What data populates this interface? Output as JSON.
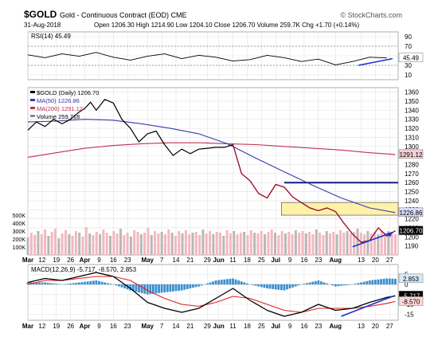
{
  "header": {
    "symbol": "$GOLD",
    "description": "Gold - Continuous Contract (EOD) CME",
    "source": "© StockCharts.com",
    "date": "31-Aug-2018",
    "ohlc_text": "Open 1206.30  High 1214.90  Low 1204.10  Close 1206.70  Volume 259.7K  Chg +1.70 (+0.14%)"
  },
  "colors": {
    "price": "#000000",
    "downtrend": "#b01030",
    "ma50": "#3a3ab0",
    "ma200": "#c03050",
    "volume_up": "#f4b8c0",
    "volume_down": "#b8b8b8",
    "macd_line": "#000000",
    "signal_line": "#e02020",
    "histogram": "#3a8fd0",
    "annotation_arrow": "#2030d0",
    "resistance": "#1a1a80",
    "highlight_box": "#fff1a8",
    "grid": "#e2e2e2"
  },
  "chart_data": [
    {
      "type": "line",
      "title": "RSI(14) 45.49",
      "legend": [
        "RSI(14) 45.49"
      ],
      "ylim": [
        0,
        100
      ],
      "y_ticks": [
        10,
        30,
        50,
        70,
        90
      ],
      "reference_lines": [
        30,
        70
      ],
      "last_value_label": "45.49",
      "series": [
        {
          "name": "RSI(14)",
          "x": [
            0,
            6,
            12,
            18,
            24,
            30,
            36,
            42,
            48,
            54,
            60,
            66,
            72,
            78,
            84,
            90,
            96,
            102,
            108,
            114,
            120,
            126
          ],
          "values": [
            52,
            46,
            54,
            49,
            57,
            47,
            41,
            49,
            54,
            44,
            51,
            47,
            39,
            42,
            51,
            46,
            38,
            43,
            31,
            38,
            47,
            45.49
          ]
        }
      ]
    },
    {
      "type": "line",
      "legend": [
        "$GOLD (Daily) 1206.70",
        "MA(50) 1226.86",
        "MA(200) 1291.12",
        "Volume 259,718"
      ],
      "ylim": [
        1180,
        1365
      ],
      "y_ticks": [
        1190,
        1200,
        1210,
        1220,
        1230,
        1240,
        1250,
        1260,
        1270,
        1280,
        1290,
        1300,
        1310,
        1320,
        1330,
        1340,
        1350,
        1360
      ],
      "x_tick_labels": [
        "Mar",
        "12",
        "19",
        "26",
        "Apr",
        "9",
        "16",
        "23",
        "May",
        "7",
        "14",
        "21",
        "29",
        "Jun",
        "11",
        "18",
        "25",
        "Jul",
        "9",
        "16",
        "23",
        "Aug",
        "13",
        "20",
        "27"
      ],
      "x_tick_positions": [
        0,
        5,
        10,
        15,
        20,
        25,
        30,
        35,
        42,
        47,
        52,
        57,
        63,
        67,
        72,
        77,
        82,
        87,
        92,
        97,
        102,
        108,
        117,
        122,
        127
      ],
      "value_labels": [
        "1291.12",
        "1226.86",
        "1206.70"
      ],
      "series": [
        {
          "name": "$GOLD (Daily) 1206.70",
          "x": [
            0,
            3,
            6,
            9,
            12,
            15,
            18,
            20,
            22,
            24,
            27,
            30,
            33,
            36,
            39,
            42,
            45,
            48,
            51,
            54,
            57,
            60,
            63,
            66,
            69,
            72,
            75,
            78,
            81,
            84,
            87,
            90,
            93,
            96,
            99,
            102,
            105,
            108,
            111,
            114,
            117,
            120,
            123,
            126,
            129
          ],
          "values": [
            1318,
            1327,
            1322,
            1330,
            1325,
            1330,
            1338,
            1342,
            1349,
            1340,
            1352,
            1348,
            1330,
            1320,
            1305,
            1314,
            1317,
            1302,
            1290,
            1297,
            1292,
            1297,
            1298,
            1299,
            1299,
            1302,
            1270,
            1262,
            1248,
            1243,
            1258,
            1255,
            1244,
            1238,
            1232,
            1229,
            1232,
            1228,
            1215,
            1203,
            1194,
            1196,
            1210,
            1201,
            1206.7
          ]
        },
        {
          "name": "MA(50) 1226.86",
          "x": [
            0,
            10,
            20,
            30,
            40,
            50,
            60,
            70,
            80,
            90,
            100,
            110,
            120,
            129
          ],
          "values": [
            1327,
            1328,
            1330,
            1329,
            1325,
            1320,
            1314,
            1303,
            1287,
            1272,
            1257,
            1243,
            1232,
            1226.86
          ]
        },
        {
          "name": "MA(200) 1291.12",
          "x": [
            0,
            10,
            20,
            30,
            40,
            50,
            60,
            70,
            80,
            90,
            100,
            110,
            120,
            129
          ],
          "values": [
            1288,
            1293,
            1298,
            1301,
            1303,
            1304,
            1304,
            1303,
            1302,
            1300,
            1298,
            1296,
            1293,
            1291.12
          ]
        },
        {
          "name": "Volume 259,718",
          "type": "bar",
          "y_ticks": [
            "100K",
            "200K",
            "300K",
            "400K",
            "500K"
          ],
          "values": [
            220,
            280,
            250,
            300,
            260,
            320,
            240,
            290,
            330,
            210,
            270,
            310,
            260,
            240,
            300,
            280,
            230,
            350,
            270,
            250,
            290,
            260,
            320,
            280,
            240,
            300,
            270,
            330,
            250,
            280,
            230,
            310,
            290,
            260,
            280,
            340,
            250,
            300,
            270,
            290,
            260,
            320,
            280,
            240,
            300,
            270,
            310,
            260,
            280,
            290,
            250,
            320,
            270,
            300,
            260,
            290,
            280,
            240,
            310,
            270,
            300,
            260,
            280,
            290,
            250,
            310,
            280,
            270,
            300,
            260,
            290,
            320,
            280,
            250,
            300,
            270,
            290,
            260,
            310,
            280,
            300,
            270,
            290,
            260,
            320,
            280,
            250,
            300,
            270,
            290,
            260,
            310,
            280,
            300,
            270,
            290,
            330,
            280,
            260,
            300,
            270,
            290,
            260,
            310,
            280,
            300,
            270,
            260
          ]
        }
      ],
      "annotations": [
        {
          "type": "hline",
          "y": 1260,
          "x_range": [
            90,
            130
          ]
        },
        {
          "type": "box",
          "y_range": [
            1224,
            1238
          ],
          "x_range": [
            89,
            130
          ]
        },
        {
          "type": "arrow",
          "from": [
            114,
            1189
          ],
          "to": [
            128,
            1205
          ]
        }
      ]
    },
    {
      "type": "line",
      "title": "MACD(12,26,9) -5.717, -8.570, 2.853",
      "legend": [
        "MACD(12,26,9) -5.717, -8.570, 2.853"
      ],
      "ylim": [
        -18,
        10
      ],
      "y_ticks": [
        -15,
        -10,
        -5,
        0,
        5
      ],
      "value_labels": [
        "2.853",
        "-5.717",
        "-8.570"
      ],
      "x_tick_labels": [
        "Mar",
        "12",
        "19",
        "26",
        "Apr",
        "9",
        "16",
        "23",
        "May",
        "7",
        "14",
        "21",
        "29",
        "Jun",
        "11",
        "18",
        "25",
        "Jul",
        "9",
        "16",
        "23",
        "Aug",
        "13",
        "20",
        "27"
      ],
      "series": [
        {
          "name": "MACD",
          "x": [
            0,
            6,
            12,
            18,
            24,
            30,
            36,
            42,
            48,
            54,
            60,
            66,
            72,
            78,
            84,
            90,
            96,
            102,
            108,
            114,
            120,
            126,
            129
          ],
          "values": [
            1,
            3,
            2,
            4,
            6,
            4,
            -2,
            -9,
            -12,
            -14,
            -12,
            -7,
            -2,
            -8,
            -13,
            -16,
            -14,
            -10,
            -13,
            -12,
            -9,
            -6.5,
            -5.717
          ]
        },
        {
          "name": "Signal",
          "x": [
            0,
            6,
            12,
            18,
            24,
            30,
            36,
            42,
            48,
            54,
            60,
            66,
            72,
            78,
            84,
            90,
            96,
            102,
            108,
            114,
            120,
            126,
            129
          ],
          "values": [
            0,
            2,
            2,
            3,
            4,
            4,
            2,
            -3,
            -7,
            -10,
            -11,
            -9,
            -6,
            -7,
            -10,
            -13,
            -14,
            -12,
            -12,
            -12,
            -11,
            -9.5,
            -8.57
          ]
        },
        {
          "name": "Histogram",
          "type": "bar",
          "x": [
            0,
            6,
            12,
            18,
            24,
            30,
            36,
            42,
            48,
            54,
            60,
            66,
            72,
            78,
            84,
            90,
            96,
            102,
            108,
            114,
            120,
            126,
            129
          ],
          "values": [
            1,
            1,
            0,
            1,
            2,
            0,
            -3,
            -5,
            -4,
            -3,
            -1,
            2,
            3,
            0,
            -2,
            -3,
            0,
            2,
            -1,
            0,
            2,
            3,
            2.853
          ]
        }
      ],
      "annotations": [
        {
          "type": "arrow",
          "from": [
            110,
            -16
          ],
          "to": [
            128,
            -6
          ]
        }
      ]
    }
  ]
}
